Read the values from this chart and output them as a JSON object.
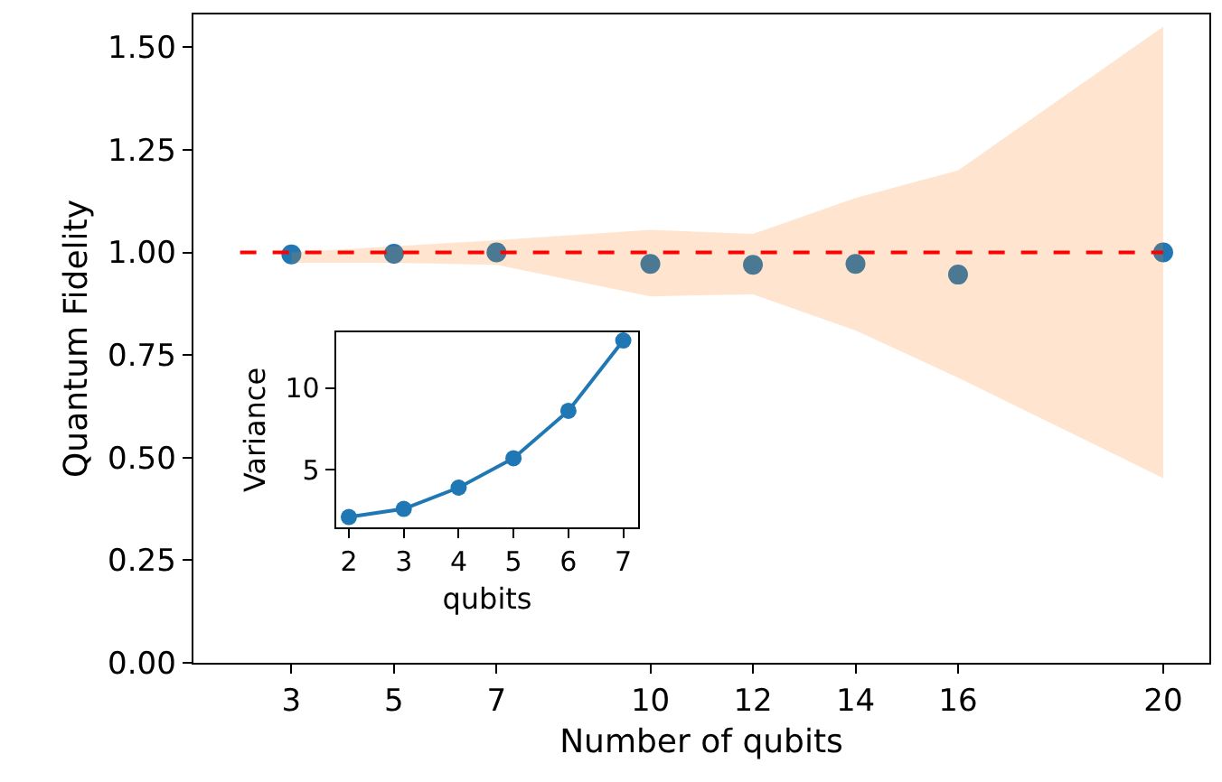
{
  "chart_data": [
    {
      "type": "scatter",
      "xlabel": "Number of qubits",
      "ylabel": "Quantum Fidelity",
      "xlim": [
        1.09,
        20.9
      ],
      "xticks": [
        3,
        5,
        7,
        10,
        12,
        14,
        16,
        20
      ],
      "ylim": [
        0,
        1.58
      ],
      "yticks": [
        {
          "value": 0,
          "label": "0.00"
        },
        {
          "value": 0.25,
          "label": "0.25"
        },
        {
          "value": 0.5,
          "label": "0.50"
        },
        {
          "value": 0.75,
          "label": "0.75"
        },
        {
          "value": 1,
          "label": "1.00"
        },
        {
          "value": 1.25,
          "label": "1.25"
        },
        {
          "value": 1.5,
          "label": "1.50"
        }
      ],
      "marker": "circle",
      "series": [
        {
          "type": "scatter",
          "color": "#1f77b4",
          "x": [
            3,
            5,
            7,
            10,
            12,
            14,
            16,
            20
          ],
          "values": [
            0.995,
            0.997,
            1.0,
            0.972,
            0.97,
            0.972,
            0.946,
            1.0
          ],
          "lower": [
            0.975,
            0.975,
            0.97,
            0.893,
            0.898,
            0.81,
            0.695,
            0.45
          ],
          "upper": [
            1.0,
            1.015,
            1.03,
            1.055,
            1.045,
            1.133,
            1.2,
            1.55
          ]
        },
        {
          "type": "line",
          "color": "#ff0000",
          "x": [
            2,
            20
          ],
          "values": [
            1,
            1
          ],
          "line_style": "dashed",
          "marker": "none"
        }
      ]
    },
    {
      "type": "line",
      "xlabel": "qubits",
      "ylabel": "Variance",
      "x": [
        2,
        3,
        4,
        5,
        6,
        7
      ],
      "values": [
        2.1,
        2.6,
        3.9,
        5.7,
        8.6,
        12.9
      ],
      "color": "#1f77b4",
      "xlim": [
        1.77,
        7.27
      ],
      "xticks": [
        2,
        3,
        4,
        5,
        6,
        7
      ],
      "ylim": [
        1.47,
        13.4
      ],
      "yticks": [
        5,
        10
      ],
      "marker": "circle",
      "line_style": "solid"
    }
  ]
}
